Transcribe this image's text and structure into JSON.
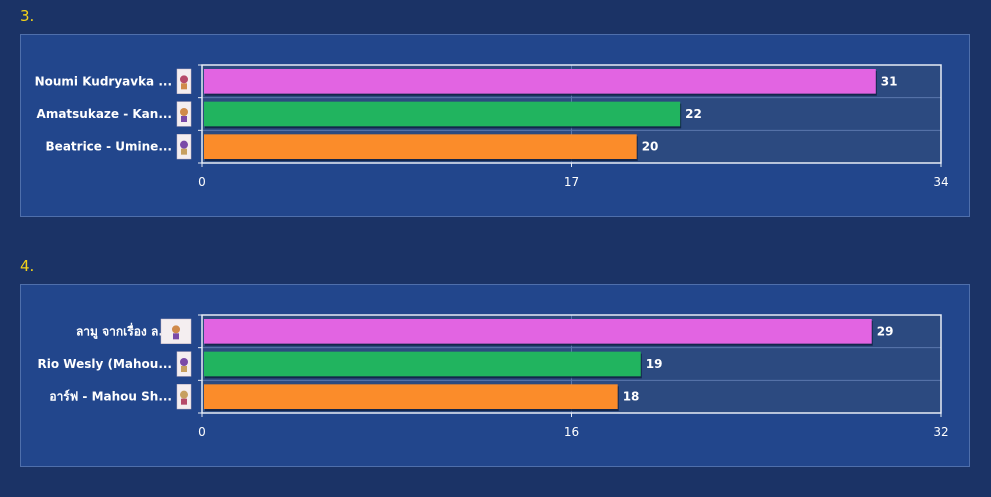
{
  "sections": [
    {
      "number": "3."
    },
    {
      "number": "4."
    }
  ],
  "chart_data": [
    {
      "type": "bar",
      "orientation": "horizontal",
      "categories": [
        "Noumi Kudryavka ...",
        "Amatsukaze - Kan...",
        "Beatrice - Umine..."
      ],
      "values": [
        31,
        22,
        20
      ],
      "colors": [
        "#e264e2",
        "#21b45f",
        "#fb8c2a"
      ],
      "xlim": [
        0,
        34
      ],
      "ticks": [
        "0",
        "17",
        "34"
      ],
      "grid": true
    },
    {
      "type": "bar",
      "orientation": "horizontal",
      "categories": [
        "ลามู จากเรื่อง ล...",
        "Rio Wesly (Mahou...",
        "อาร์ฟ - Mahou Sh..."
      ],
      "values": [
        29,
        19,
        18
      ],
      "colors": [
        "#e264e2",
        "#21b45f",
        "#fb8c2a"
      ],
      "xlim": [
        0,
        32
      ],
      "ticks": [
        "0",
        "16",
        "32"
      ],
      "grid": true
    }
  ],
  "theme": {
    "background": "#1b3366",
    "panel": "#22468c",
    "plot_area": "#2c4a80",
    "section_number_color": "#f2d21a"
  }
}
